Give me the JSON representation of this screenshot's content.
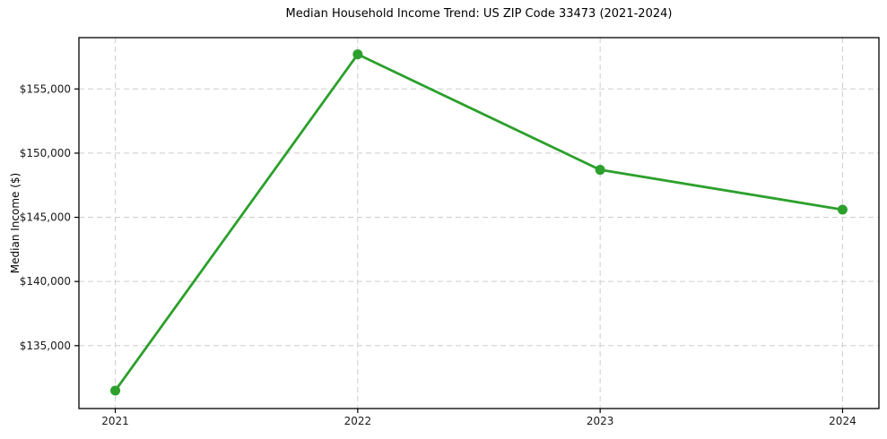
{
  "chart_data": {
    "type": "line",
    "title": "Median Household Income Trend: US ZIP Code 33473 (2021-2024)",
    "xlabel": "",
    "ylabel": "Median Income ($)",
    "x": [
      2021,
      2022,
      2023,
      2024
    ],
    "series": [
      {
        "name": "Median Household Income",
        "values": [
          131500,
          157700,
          148700,
          145600
        ]
      }
    ],
    "xticks": [
      2021,
      2022,
      2023,
      2024
    ],
    "xtick_labels": [
      "2021",
      "2022",
      "2023",
      "2024"
    ],
    "yticks": [
      135000,
      140000,
      145000,
      150000,
      155000
    ],
    "ytick_labels": [
      "$135,000",
      "$140,000",
      "$145,000",
      "$150,000",
      "$155,000"
    ],
    "xlim": [
      2020.85,
      2024.15
    ],
    "ylim": [
      130100,
      159000
    ],
    "grid": true,
    "legend": "none",
    "colors": {
      "line": "#2ca02c",
      "marker": "#2ca02c",
      "grid": "#cdcdcd",
      "frame": "#000000",
      "text": "#1a1a1a",
      "background": "#ffffff"
    }
  }
}
